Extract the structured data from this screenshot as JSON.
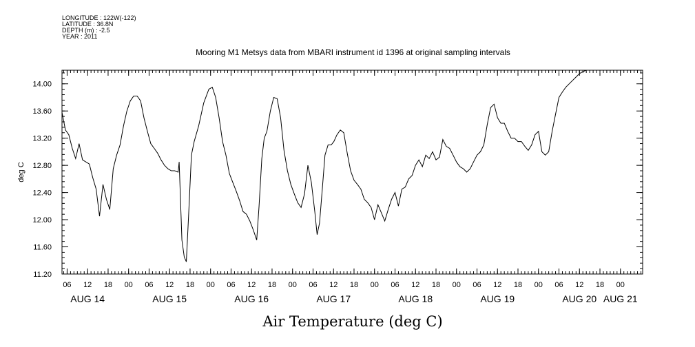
{
  "header": {
    "longitude": "LONGITUDE : 122W(-122)",
    "latitude": "LATITUDE : 36.8N",
    "depth": "DEPTH (m) : -2.5",
    "year": "YEAR : 2011"
  },
  "chart_data": {
    "type": "line",
    "title": "Mooring M1 Metsys data from MBARI instrument id 1396 at original sampling intervals",
    "xlabel": "Air Temperature (deg C)",
    "ylabel": "deg C",
    "ylim": [
      11.2,
      14.2
    ],
    "yticks": [
      11.2,
      11.6,
      12.0,
      12.4,
      12.8,
      13.2,
      13.6,
      14.0
    ],
    "ytick_labels": [
      "11.20",
      "11.60",
      "12.00",
      "12.40",
      "12.80",
      "13.20",
      "13.60",
      "14.00"
    ],
    "x_units": "hours since Aug 14 00:00",
    "xlim": [
      4.5,
      174.5
    ],
    "hour_ticks": [
      6,
      12,
      18,
      24,
      30,
      36,
      42,
      48,
      54,
      60,
      66,
      72,
      78,
      84,
      90,
      96,
      102,
      108,
      114,
      120,
      126,
      132,
      138,
      144,
      150,
      156,
      162,
      168
    ],
    "hour_tick_labels": [
      "06",
      "12",
      "18",
      "00",
      "06",
      "12",
      "18",
      "00",
      "06",
      "12",
      "18",
      "00",
      "06",
      "12",
      "18",
      "00",
      "06",
      "12",
      "18",
      "00",
      "06",
      "12",
      "18",
      "00",
      "06",
      "12",
      "18",
      "00"
    ],
    "date_labels": [
      {
        "hour": 12,
        "label": "AUG 14"
      },
      {
        "hour": 36,
        "label": "AUG 15"
      },
      {
        "hour": 60,
        "label": "AUG 16"
      },
      {
        "hour": 84,
        "label": "AUG 17"
      },
      {
        "hour": 108,
        "label": "AUG 18"
      },
      {
        "hour": 132,
        "label": "AUG 19"
      },
      {
        "hour": 156,
        "label": "AUG 20"
      },
      {
        "hour": 168,
        "label": "AUG 21"
      }
    ],
    "grid": false,
    "series": [
      {
        "x": [
          4.5,
          5.5,
          6.5,
          7.5,
          8.5,
          9.5,
          10.5,
          11.5,
          12.5,
          13.5,
          14.5,
          15.5,
          16.5,
          17.5,
          18.5,
          19.5,
          20.5,
          21.5,
          22.5,
          23.5,
          24.5,
          25.5,
          26.5,
          27.5,
          28.5,
          29.5,
          30.5,
          31.5,
          32.5,
          33.5,
          34.5,
          35.5,
          36.5,
          37.5,
          38.5,
          38.8,
          39.6,
          40.3,
          40.9,
          41.6,
          42.4,
          43.2,
          44.5,
          46.0,
          47.5,
          48.5,
          49.5,
          50.5,
          51.5,
          52.5,
          53.5,
          54.5,
          55.5,
          56.5,
          57.5,
          58.5,
          59.5,
          60.5,
          61.5,
          62.2,
          63.0,
          63.7,
          64.5,
          65.5,
          66.5,
          67.5,
          68.5,
          69.5,
          70.5,
          71.5,
          72.5,
          73.5,
          74.5,
          75.5,
          76.5,
          77.5,
          78.5,
          79.2,
          79.9,
          80.7,
          81.5,
          82.4,
          83.3,
          84.1,
          85.0,
          86.0,
          87.0,
          88.0,
          89.0,
          90.0,
          91.0,
          92.0,
          93.0,
          94.0,
          95.0,
          96.0,
          97.0,
          98.0,
          99.0,
          100.0,
          101.0,
          102.0,
          103.0,
          104.0,
          105.0,
          106.0,
          107.0,
          108.0,
          109.0,
          110.0,
          111.0,
          112.0,
          113.0,
          114.0,
          115.0,
          116.0,
          117.0,
          118.0,
          119.0,
          120.0,
          121.0,
          122.0,
          123.0,
          124.0,
          125.0,
          126.0,
          127.0,
          128.0,
          129.0,
          130.0,
          131.0,
          132.0,
          133.0,
          134.0,
          135.0,
          136.0,
          137.0,
          138.0,
          139.0,
          140.0,
          141.0,
          142.0,
          143.0,
          144.0,
          145.0,
          146.0,
          147.0,
          148.0,
          149.0,
          150.0,
          151.0,
          152.0,
          153.0,
          154.0,
          155.0,
          156.0,
          157.0,
          158.0,
          159.0,
          160.0,
          161.0,
          162.0,
          163.0,
          164.0,
          165.0,
          166.0,
          167.0,
          168.0,
          169.0,
          170.0,
          171.0,
          172.0,
          173.0,
          174.0
        ],
        "y": [
          13.58,
          13.32,
          13.25,
          13.05,
          12.9,
          13.12,
          12.88,
          12.85,
          12.82,
          12.62,
          12.45,
          12.05,
          12.52,
          12.3,
          12.15,
          12.75,
          12.95,
          13.1,
          13.38,
          13.6,
          13.75,
          13.82,
          13.82,
          13.75,
          13.5,
          13.3,
          13.12,
          13.05,
          12.98,
          12.88,
          12.8,
          12.75,
          12.72,
          12.72,
          12.7,
          12.85,
          11.7,
          11.45,
          11.38,
          12.1,
          12.95,
          13.15,
          13.38,
          13.72,
          13.92,
          13.95,
          13.8,
          13.5,
          13.15,
          12.95,
          12.68,
          12.55,
          12.42,
          12.28,
          12.12,
          12.08,
          11.98,
          11.85,
          11.7,
          12.2,
          12.9,
          13.2,
          13.3,
          13.6,
          13.8,
          13.78,
          13.5,
          13.02,
          12.72,
          12.52,
          12.38,
          12.25,
          12.18,
          12.38,
          12.8,
          12.55,
          12.12,
          11.78,
          11.95,
          12.45,
          12.95,
          13.1,
          13.1,
          13.15,
          13.25,
          13.32,
          13.28,
          12.98,
          12.72,
          12.58,
          12.52,
          12.45,
          12.3,
          12.25,
          12.18,
          12.0,
          12.22,
          12.1,
          11.98,
          12.15,
          12.3,
          12.4,
          12.2,
          12.45,
          12.48,
          12.6,
          12.65,
          12.8,
          12.88,
          12.78,
          12.95,
          12.9,
          13.0,
          12.88,
          12.92,
          13.18,
          13.08,
          13.05,
          12.95,
          12.85,
          12.78,
          12.75,
          12.7,
          12.75,
          12.85,
          12.95,
          13.0,
          13.1,
          13.4,
          13.65,
          13.7,
          13.5,
          13.42,
          13.42,
          13.3,
          13.2,
          13.2,
          13.15,
          13.15,
          13.08,
          13.02,
          13.1,
          13.25,
          13.3,
          13.0,
          12.95,
          13.0,
          13.3,
          13.55,
          13.8,
          13.88,
          13.95,
          14.0,
          14.05,
          14.1,
          14.15,
          14.18,
          14.2,
          14.2,
          14.2,
          14.2,
          14.2,
          14.2,
          14.2,
          14.2,
          14.2,
          14.2,
          14.2,
          14.2,
          14.2,
          14.2,
          14.2,
          14.2,
          14.2
        ]
      }
    ]
  }
}
